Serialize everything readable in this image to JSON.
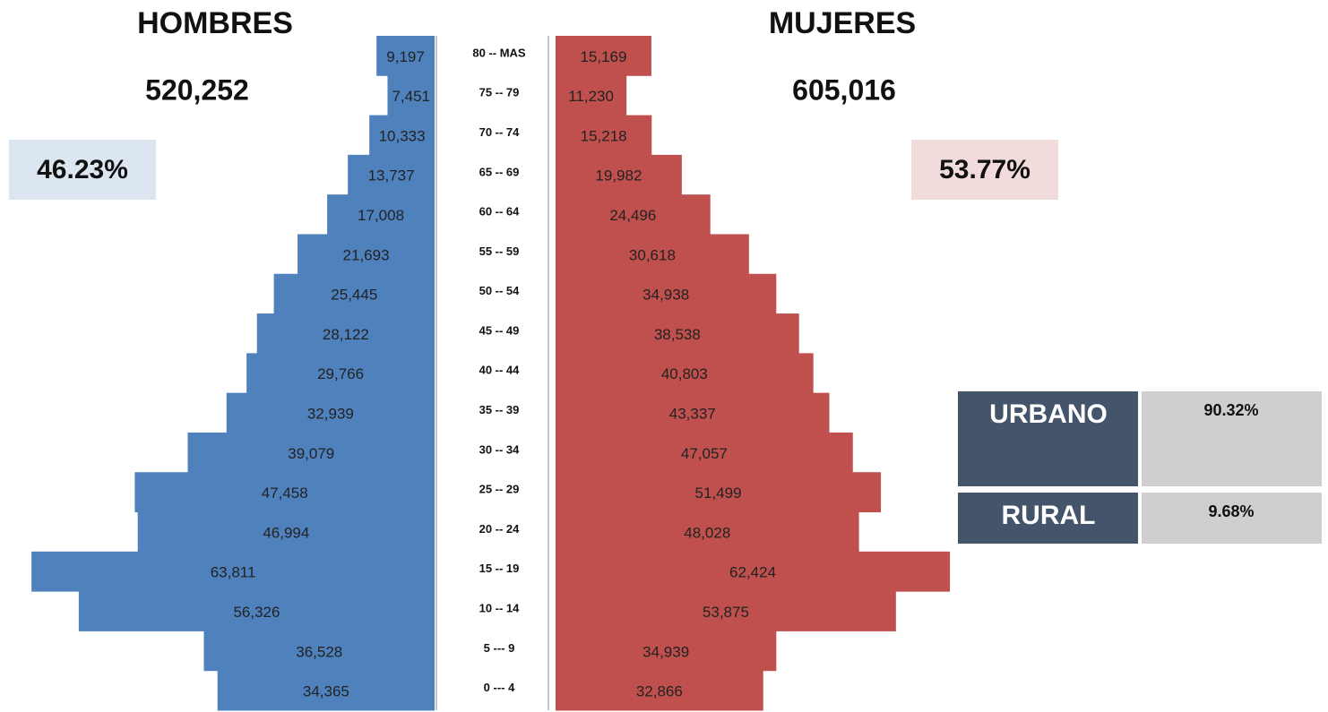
{
  "chart_data": {
    "type": "pyramid",
    "categories": [
      "80 -- MAS",
      "75 -- 79",
      "70 -- 74",
      "65 -- 69",
      "60 -- 64",
      "55 -- 59",
      "50 -- 54",
      "45 -- 49",
      "40 -- 44",
      "35 -- 39",
      "30 -- 34",
      "25 -- 29",
      "20 -- 24",
      "15 -- 19",
      "10 -- 14",
      "5 --- 9",
      "0 --- 4"
    ],
    "series": [
      {
        "name": "HOMBRES",
        "color": "#4f81bd",
        "side": "left",
        "total": {
          "value": 520252,
          "label": "520,252"
        },
        "share": {
          "value": 46.23,
          "label": "46.23%"
        },
        "share_color": "#dce6f1",
        "values": [
          9197,
          7451,
          10333,
          13737,
          17008,
          21693,
          25445,
          28122,
          29766,
          32939,
          39079,
          47458,
          46994,
          63811,
          56326,
          36528,
          34365
        ],
        "value_labels": [
          "9,197",
          "7,451",
          "10,333",
          "13,737",
          "17,008",
          "21,693",
          "25,445",
          "28,122",
          "29,766",
          "32,939",
          "39,079",
          "47,458",
          "46,994",
          "63,811",
          "56,326",
          "36,528",
          "34,365"
        ]
      },
      {
        "name": "MUJERES",
        "color": "#c0504d",
        "side": "right",
        "total": {
          "value": 605016,
          "label": "605,016"
        },
        "share": {
          "value": 53.77,
          "label": "53.77%"
        },
        "share_color": "#f2dcdb",
        "values": [
          15169,
          11230,
          15218,
          19982,
          24496,
          30618,
          34938,
          38538,
          40803,
          43337,
          47057,
          51499,
          48028,
          62424,
          53875,
          34939,
          32866
        ],
        "value_labels": [
          "15,169",
          "11,230",
          "15,218",
          "19,982",
          "24,496",
          "30,618",
          "34,938",
          "38,538",
          "40,803",
          "43,337",
          "47,057",
          "51,499",
          "48,028",
          "62,424",
          "53,875",
          "34,939",
          "32,866"
        ]
      }
    ],
    "area_split": [
      {
        "name": "URBANO",
        "value": 90.32,
        "label": "90.32%"
      },
      {
        "name": "RURAL",
        "value": 9.68,
        "label": "9.68%"
      }
    ]
  }
}
